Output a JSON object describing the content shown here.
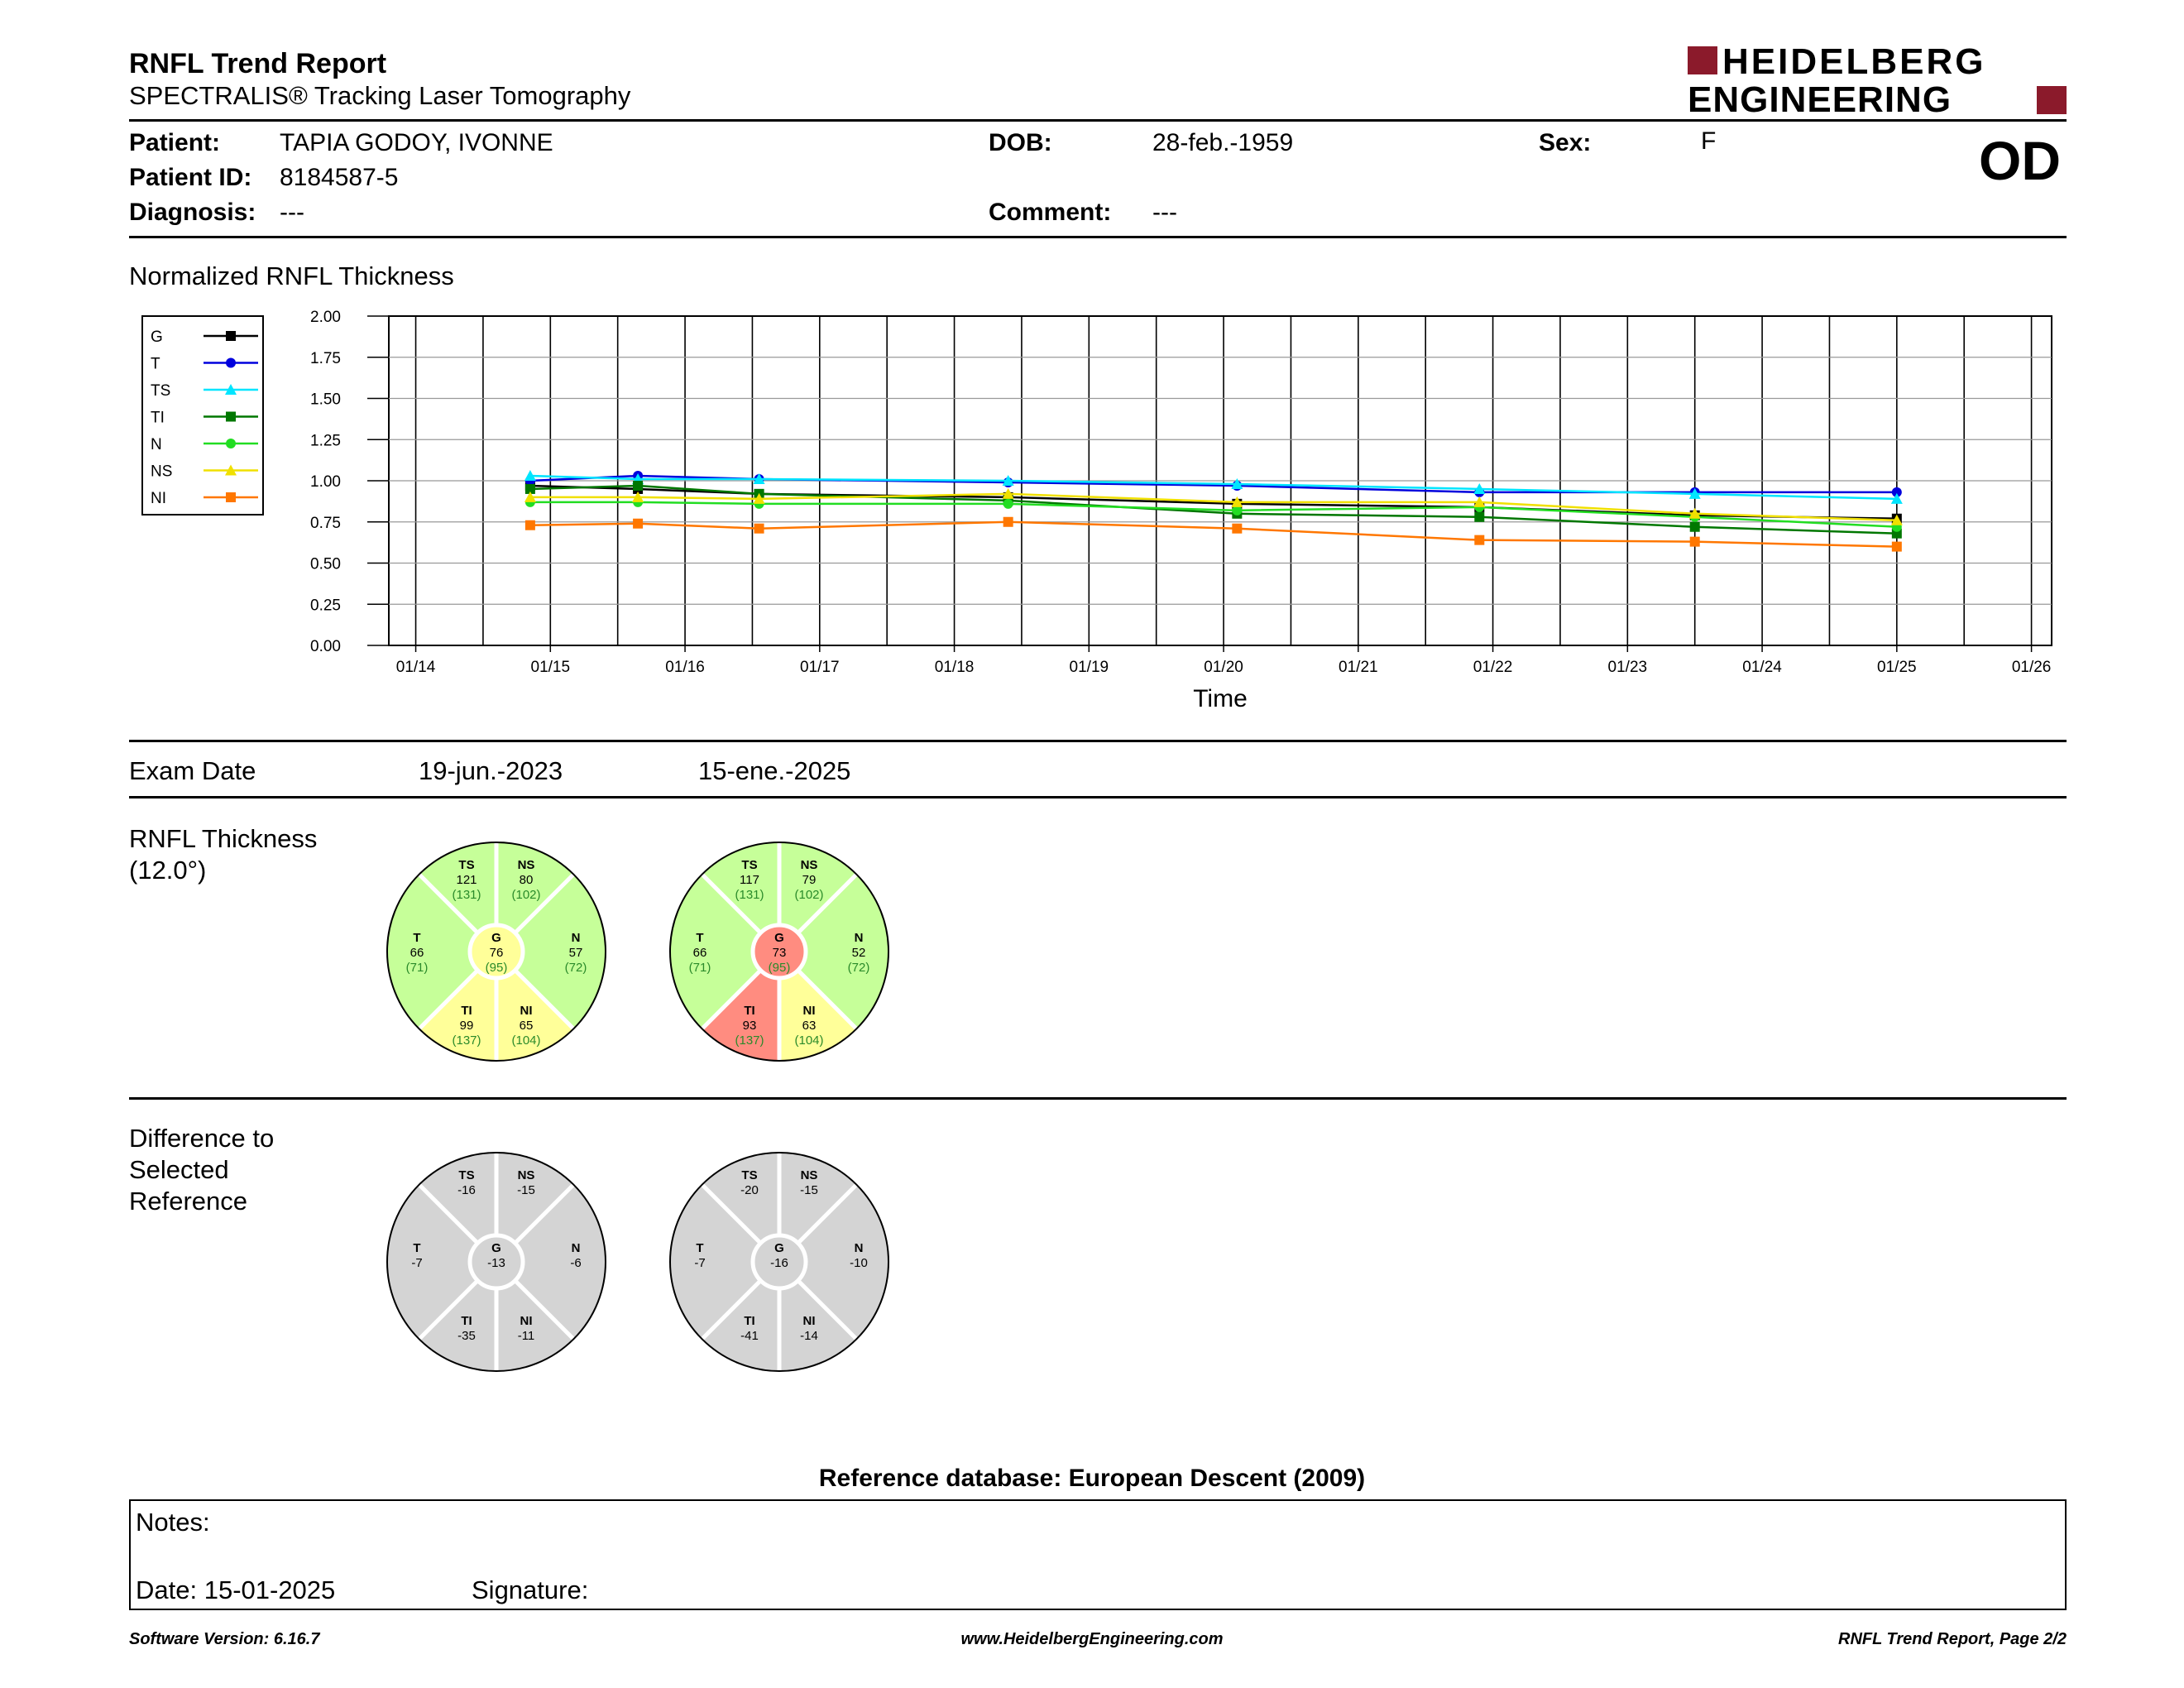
{
  "header": {
    "title": "RNFL Trend Report",
    "subtitle": "SPECTRALIS® Tracking Laser Tomography",
    "logo_line1": "HEIDELBERG",
    "logo_line2": "ENGINEERING",
    "eye": "OD",
    "brand_color": "#8b1a2b"
  },
  "patient": {
    "patient_label": "Patient:",
    "patient_value": "TAPIA GODOY, IVONNE",
    "id_label": "Patient ID:",
    "id_value": "8184587-5",
    "diagnosis_label": "Diagnosis:",
    "diagnosis_value": "---",
    "dob_label": "DOB:",
    "dob_value": "28-feb.-1959",
    "comment_label": "Comment:",
    "comment_value": "---",
    "sex_label": "Sex:",
    "sex_value": "F"
  },
  "chart_section_title": "Normalized RNFL Thickness",
  "chart_data": {
    "type": "line",
    "title": "",
    "xlabel": "Time",
    "ylabel": "",
    "ylim": [
      0,
      2
    ],
    "yticks": [
      "0.00",
      "0.25",
      "0.50",
      "0.75",
      "1.00",
      "1.25",
      "1.50",
      "1.75",
      "2.00"
    ],
    "xticks": [
      "01/14",
      "01/15",
      "01/16",
      "01/17",
      "01/18",
      "01/19",
      "01/20",
      "01/21",
      "01/22",
      "01/23",
      "01/24",
      "01/25",
      "01/26"
    ],
    "grid": true,
    "legend_position": "left",
    "x": [
      14.85,
      15.65,
      16.55,
      18.4,
      20.1,
      21.9,
      23.5,
      25.0
    ],
    "series": [
      {
        "name": "G",
        "color": "#000000",
        "marker": "square",
        "values": [
          0.97,
          0.95,
          0.92,
          0.9,
          0.86,
          0.84,
          0.79,
          0.77
        ]
      },
      {
        "name": "T",
        "color": "#0000dd",
        "marker": "circle",
        "values": [
          1.0,
          1.03,
          1.01,
          0.99,
          0.97,
          0.93,
          0.93,
          0.93
        ]
      },
      {
        "name": "TS",
        "color": "#00e5ff",
        "marker": "triangle",
        "values": [
          1.03,
          1.01,
          1.01,
          1.0,
          0.98,
          0.95,
          0.92,
          0.89
        ]
      },
      {
        "name": "TI",
        "color": "#007700",
        "marker": "square",
        "values": [
          0.95,
          0.97,
          0.92,
          0.88,
          0.8,
          0.78,
          0.72,
          0.68
        ]
      },
      {
        "name": "N",
        "color": "#22dd22",
        "marker": "circle",
        "values": [
          0.87,
          0.87,
          0.86,
          0.86,
          0.82,
          0.84,
          0.78,
          0.72
        ]
      },
      {
        "name": "NS",
        "color": "#f0e000",
        "marker": "triangle",
        "values": [
          0.9,
          0.9,
          0.89,
          0.92,
          0.87,
          0.87,
          0.8,
          0.76
        ]
      },
      {
        "name": "NI",
        "color": "#ff7700",
        "marker": "square",
        "values": [
          0.73,
          0.74,
          0.71,
          0.75,
          0.71,
          0.64,
          0.63,
          0.6
        ]
      }
    ]
  },
  "exam": {
    "label": "Exam Date",
    "dates": [
      "19-jun.-2023",
      "15-ene.-2025"
    ]
  },
  "thickness": {
    "title_line1": "RNFL Thickness",
    "title_line2": "(12.0°)",
    "circles": [
      {
        "TS": {
          "v": "121",
          "r": "(131)",
          "c": "green"
        },
        "NS": {
          "v": "80",
          "r": "(102)",
          "c": "green"
        },
        "T": {
          "v": "66",
          "r": "(71)",
          "c": "green"
        },
        "G": {
          "v": "76",
          "r": "(95)",
          "c": "yellow"
        },
        "N": {
          "v": "57",
          "r": "(72)",
          "c": "green"
        },
        "TI": {
          "v": "99",
          "r": "(137)",
          "c": "yellow"
        },
        "NI": {
          "v": "65",
          "r": "(104)",
          "c": "yellow"
        }
      },
      {
        "TS": {
          "v": "117",
          "r": "(131)",
          "c": "green"
        },
        "NS": {
          "v": "79",
          "r": "(102)",
          "c": "green"
        },
        "T": {
          "v": "66",
          "r": "(71)",
          "c": "green"
        },
        "G": {
          "v": "73",
          "r": "(95)",
          "c": "red"
        },
        "N": {
          "v": "52",
          "r": "(72)",
          "c": "green"
        },
        "TI": {
          "v": "93",
          "r": "(137)",
          "c": "red"
        },
        "NI": {
          "v": "63",
          "r": "(104)",
          "c": "yellow"
        }
      }
    ]
  },
  "difference": {
    "title_line1": "Difference to",
    "title_line2": "Selected",
    "title_line3": "Reference",
    "circles": [
      {
        "TS": "-16",
        "NS": "-15",
        "T": "-7",
        "G": "-13",
        "N": "-6",
        "TI": "-35",
        "NI": "-11"
      },
      {
        "TS": "-20",
        "NS": "-15",
        "T": "-7",
        "G": "-16",
        "N": "-10",
        "TI": "-41",
        "NI": "-14"
      }
    ]
  },
  "sector_names": [
    "TS",
    "NS",
    "T",
    "G",
    "N",
    "TI",
    "NI"
  ],
  "reference_db": "Reference database: European Descent (2009)",
  "notes": {
    "notes_label": "Notes:",
    "date_label": "Date: 15-01-2025",
    "signature_label": "Signature:"
  },
  "footer": {
    "left": "Software Version: 6.16.7",
    "center": "www.HeidelbergEngineering.com",
    "right": "RNFL Trend Report, Page 2/2"
  }
}
